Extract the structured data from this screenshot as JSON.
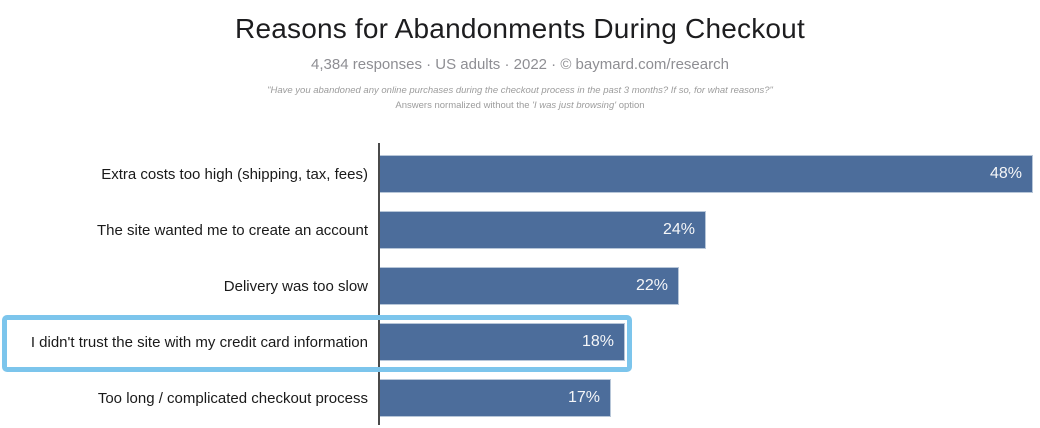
{
  "header": {
    "title": "Reasons for Abandonments During Checkout",
    "subtitle": "4,384 responses · US adults · 2022 · © baymard.com/research"
  },
  "footnote": {
    "line1": "\"Have you abandoned any online purchases during the checkout process in the past 3 months? If so, for what reasons?\"",
    "line2_prefix": "Answers normalized without the ",
    "line2_italic": "'I was just browsing'",
    "line2_suffix": " option"
  },
  "chart_data": {
    "type": "bar",
    "orientation": "horizontal",
    "title": "Reasons for Abandonments During Checkout",
    "categories": [
      "Extra costs too high (shipping, tax, fees)",
      "The site wanted me to create an account",
      "Delivery was too slow",
      "I didn't trust the site with my credit card information",
      "Too long / complicated checkout process"
    ],
    "values": [
      48,
      24,
      22,
      18,
      17
    ],
    "value_labels": [
      "48%",
      "24%",
      "22%",
      "18%",
      "17%"
    ],
    "xlabel": "",
    "ylabel": "",
    "xlim": [
      0,
      48.5
    ],
    "grid": false,
    "legend": false,
    "highlight_index": 3,
    "highlighted_category": "I didn't trust the site with my credit card information"
  },
  "colors": {
    "bar": "#4c6d9b",
    "bar_edge": "#b7c6d8",
    "value_text": "#f5f6f8",
    "axis": "#4a4a4a",
    "highlight_border": "#7cc5ec",
    "title_text": "#1d1d1f",
    "subtitle_text": "#8e8e93"
  }
}
